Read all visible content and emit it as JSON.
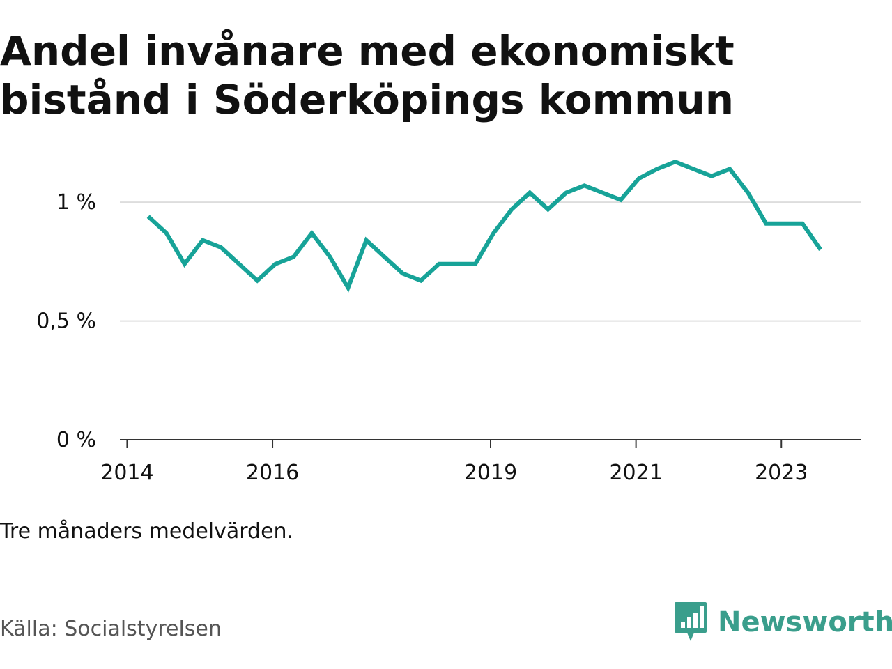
{
  "header": {
    "title_line1": "Andel invånare med ekonomiskt",
    "title_line2": "bistånd i Söderköpings kommun"
  },
  "footer": {
    "note": "Tre månaders medelvärden.",
    "source": "Källa: Socialstyrelsen",
    "brand": "Newsworthy",
    "brand_icon": "newsworthy-logo-icon"
  },
  "colors": {
    "line": "#17A398",
    "brand": "#3A9E8C",
    "grid": "#DDDDDD",
    "axis": "#333333",
    "text": "#111111",
    "source": "#555555"
  },
  "chart_data": {
    "type": "line",
    "title": "Andel invånare med ekonomiskt bistånd i Söderköpings kommun",
    "xlabel": "",
    "ylabel": "",
    "x_ticks": [
      "2014",
      "2016",
      "2019",
      "2021",
      "2023"
    ],
    "x_tick_years": [
      2014,
      2016,
      2019,
      2021,
      2023
    ],
    "y_ticks": [
      "0 %",
      "0,5 %",
      "1 %"
    ],
    "y_tick_values": [
      0,
      0.5,
      1.0
    ],
    "ylim": [
      0,
      1.2
    ],
    "xlim": [
      2013.9,
      2024.1
    ],
    "grid": true,
    "series": [
      {
        "x": [
          2014.29,
          2014.54,
          2014.79,
          2015.04,
          2015.29,
          2015.54,
          2015.79,
          2016.04,
          2016.29,
          2016.54,
          2016.79,
          2017.04,
          2017.29,
          2017.54,
          2017.79,
          2018.04,
          2018.29,
          2018.54,
          2018.79,
          2019.04,
          2019.29,
          2019.54,
          2019.79,
          2020.04,
          2020.29,
          2020.54,
          2020.79,
          2021.04,
          2021.29,
          2021.54,
          2021.79,
          2022.04,
          2022.29,
          2022.54,
          2022.79,
          2023.04,
          2023.29,
          2023.54
        ],
        "values": [
          0.94,
          0.87,
          0.74,
          0.84,
          0.81,
          0.74,
          0.67,
          0.74,
          0.77,
          0.87,
          0.77,
          0.64,
          0.84,
          0.77,
          0.7,
          0.67,
          0.74,
          0.74,
          0.74,
          0.87,
          0.97,
          1.04,
          0.97,
          1.04,
          1.07,
          1.04,
          1.01,
          1.1,
          1.14,
          1.17,
          1.14,
          1.11,
          1.14,
          1.04,
          0.91,
          0.91,
          0.91,
          0.8
        ]
      }
    ]
  }
}
